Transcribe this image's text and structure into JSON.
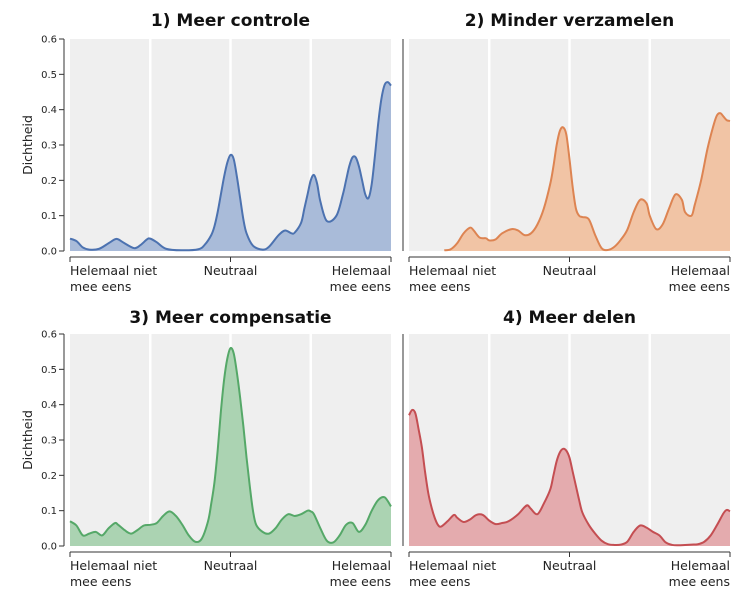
{
  "chart_data": [
    {
      "type": "area",
      "number": "1)",
      "title": "Meer controle",
      "color": "#4c72b0",
      "fill": "#a9bbd9",
      "ylabel": "Dichtheid",
      "ylim": [
        0,
        0.6
      ],
      "yticks": [
        "0.0",
        "0.1",
        "0.2",
        "0.3",
        "0.4",
        "0.5",
        "0.6"
      ],
      "xlim": [
        0,
        100
      ],
      "x_tick_labels": [
        {
          "value": 0,
          "lines": [
            "Helemaal niet",
            "mee eens"
          ]
        },
        {
          "value": 50,
          "lines": [
            "Neutraal"
          ]
        },
        {
          "value": 100,
          "lines": [
            "Helemaal",
            "mee eens"
          ]
        }
      ],
      "x": [
        0,
        2,
        4,
        6,
        9,
        12,
        14,
        15,
        17,
        20,
        22,
        24,
        25,
        27,
        30,
        35,
        40,
        42,
        44,
        45,
        46,
        47,
        48,
        49,
        50,
        51,
        52,
        53,
        54,
        55,
        57,
        60,
        62,
        65,
        67,
        69,
        70,
        72,
        73,
        74,
        75,
        76,
        77,
        78,
        80,
        83,
        85,
        86,
        87,
        88,
        89,
        90,
        91,
        92,
        93,
        94,
        95,
        96,
        97,
        98,
        99,
        100
      ],
      "y": [
        0.035,
        0.028,
        0.01,
        0.004,
        0.006,
        0.022,
        0.033,
        0.033,
        0.022,
        0.008,
        0.017,
        0.033,
        0.035,
        0.025,
        0.006,
        0.002,
        0.005,
        0.018,
        0.045,
        0.07,
        0.11,
        0.16,
        0.21,
        0.25,
        0.272,
        0.26,
        0.21,
        0.15,
        0.09,
        0.05,
        0.015,
        0.004,
        0.012,
        0.045,
        0.058,
        0.05,
        0.052,
        0.08,
        0.12,
        0.16,
        0.2,
        0.215,
        0.19,
        0.14,
        0.085,
        0.1,
        0.16,
        0.2,
        0.24,
        0.265,
        0.265,
        0.24,
        0.2,
        0.16,
        0.15,
        0.19,
        0.27,
        0.36,
        0.43,
        0.47,
        0.478,
        0.468
      ]
    },
    {
      "type": "area",
      "number": "2)",
      "title": "Minder verzamelen",
      "color": "#dd8452",
      "fill": "#f1c4a5",
      "ylabel": "",
      "ylim": [
        0,
        0.6
      ],
      "xlim": [
        0,
        100
      ],
      "x_tick_labels": [
        {
          "value": 0,
          "lines": [
            "Helemaal niet",
            "mee eens"
          ]
        },
        {
          "value": 50,
          "lines": [
            "Neutraal"
          ]
        },
        {
          "value": 100,
          "lines": [
            "Helemaal",
            "mee eens"
          ]
        }
      ],
      "x": [
        11,
        13,
        15,
        17,
        19,
        20,
        22,
        24,
        25,
        27,
        29,
        32,
        34,
        36,
        38,
        40,
        42,
        44,
        45,
        46,
        47,
        48,
        49,
        50,
        51,
        52,
        53,
        54,
        56,
        58,
        60,
        62,
        64,
        66,
        68,
        70,
        72,
        74,
        75,
        77,
        79,
        81,
        83,
        85,
        86,
        88,
        89,
        91,
        93,
        95,
        96,
        97,
        98,
        99,
        100
      ],
      "y": [
        0.002,
        0.005,
        0.022,
        0.05,
        0.066,
        0.06,
        0.038,
        0.036,
        0.03,
        0.033,
        0.05,
        0.062,
        0.058,
        0.045,
        0.05,
        0.075,
        0.12,
        0.19,
        0.24,
        0.3,
        0.34,
        0.35,
        0.33,
        0.26,
        0.18,
        0.12,
        0.1,
        0.096,
        0.09,
        0.045,
        0.008,
        0.003,
        0.012,
        0.032,
        0.06,
        0.11,
        0.145,
        0.135,
        0.1,
        0.062,
        0.075,
        0.12,
        0.16,
        0.145,
        0.11,
        0.1,
        0.13,
        0.2,
        0.29,
        0.36,
        0.385,
        0.39,
        0.38,
        0.37,
        0.368
      ]
    },
    {
      "type": "area",
      "number": "3)",
      "title": "Meer compensatie",
      "color": "#55a868",
      "fill": "#abd3b2",
      "ylabel": "Dichtheid",
      "ylim": [
        0,
        0.6
      ],
      "yticks": [
        "0.0",
        "0.1",
        "0.2",
        "0.3",
        "0.4",
        "0.5",
        "0.6"
      ],
      "xlim": [
        0,
        100
      ],
      "x_tick_labels": [
        {
          "value": 0,
          "lines": [
            "Helemaal niet",
            "mee eens"
          ]
        },
        {
          "value": 50,
          "lines": [
            "Neutraal"
          ]
        },
        {
          "value": 100,
          "lines": [
            "Helemaal",
            "mee eens"
          ]
        }
      ],
      "x": [
        0,
        2,
        4,
        6,
        8,
        10,
        12,
        14,
        15,
        17,
        19,
        21,
        23,
        25,
        27,
        29,
        31,
        33,
        35,
        37,
        39,
        41,
        43,
        44,
        45,
        46,
        47,
        48,
        49,
        50,
        51,
        52,
        53,
        54,
        55,
        56,
        57,
        58,
        60,
        62,
        64,
        66,
        68,
        70,
        72,
        74,
        75,
        76,
        78,
        80,
        82,
        84,
        86,
        88,
        90,
        92,
        94,
        96,
        98,
        100
      ],
      "y": [
        0.07,
        0.058,
        0.03,
        0.035,
        0.04,
        0.03,
        0.05,
        0.065,
        0.06,
        0.045,
        0.035,
        0.045,
        0.058,
        0.06,
        0.065,
        0.085,
        0.098,
        0.085,
        0.06,
        0.03,
        0.012,
        0.02,
        0.07,
        0.12,
        0.18,
        0.27,
        0.38,
        0.47,
        0.53,
        0.56,
        0.545,
        0.49,
        0.42,
        0.34,
        0.25,
        0.17,
        0.1,
        0.06,
        0.04,
        0.035,
        0.05,
        0.075,
        0.09,
        0.085,
        0.09,
        0.1,
        0.098,
        0.09,
        0.05,
        0.015,
        0.01,
        0.03,
        0.06,
        0.065,
        0.04,
        0.06,
        0.1,
        0.13,
        0.138,
        0.112
      ]
    },
    {
      "type": "area",
      "number": "4)",
      "title": "Meer delen",
      "color": "#c44e52",
      "fill": "#e4abae",
      "ylabel": "",
      "ylim": [
        0,
        0.6
      ],
      "xlim": [
        0,
        100
      ],
      "x_tick_labels": [
        {
          "value": 0,
          "lines": [
            "Helemaal niet",
            "mee eens"
          ]
        },
        {
          "value": 50,
          "lines": [
            "Neutraal"
          ]
        },
        {
          "value": 100,
          "lines": [
            "Helemaal",
            "mee eens"
          ]
        }
      ],
      "x": [
        0,
        1,
        2,
        3,
        4,
        5,
        6,
        7,
        8,
        9,
        10,
        12,
        14,
        15,
        17,
        19,
        21,
        23,
        25,
        27,
        29,
        31,
        34,
        36,
        37,
        38,
        40,
        42,
        44,
        45,
        46,
        47,
        48,
        49,
        50,
        51,
        52,
        53,
        54,
        56,
        58,
        60,
        62,
        64,
        66,
        68,
        70,
        72,
        74,
        76,
        78,
        80,
        82,
        84,
        86,
        88,
        90,
        92,
        94,
        96,
        98,
        99,
        100
      ],
      "y": [
        0.37,
        0.385,
        0.375,
        0.33,
        0.28,
        0.21,
        0.15,
        0.11,
        0.08,
        0.06,
        0.055,
        0.07,
        0.088,
        0.08,
        0.068,
        0.075,
        0.088,
        0.088,
        0.072,
        0.062,
        0.065,
        0.07,
        0.09,
        0.11,
        0.115,
        0.105,
        0.09,
        0.12,
        0.16,
        0.2,
        0.24,
        0.265,
        0.275,
        0.27,
        0.25,
        0.21,
        0.17,
        0.13,
        0.095,
        0.06,
        0.035,
        0.015,
        0.005,
        0.003,
        0.004,
        0.012,
        0.04,
        0.058,
        0.052,
        0.04,
        0.03,
        0.01,
        0.003,
        0.002,
        0.003,
        0.004,
        0.005,
        0.012,
        0.03,
        0.06,
        0.093,
        0.102,
        0.098
      ]
    }
  ]
}
